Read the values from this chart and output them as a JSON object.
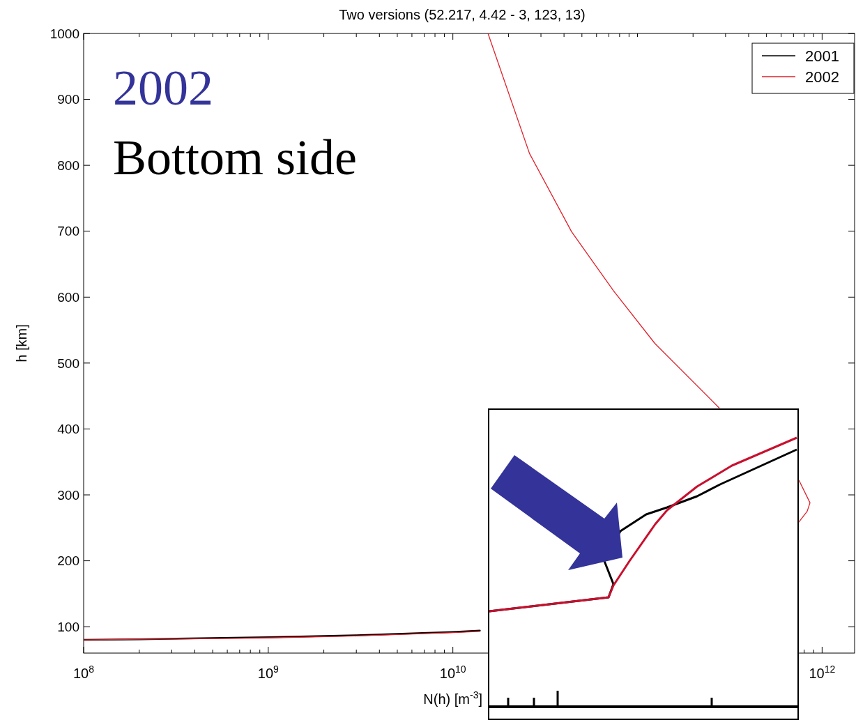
{
  "chart_data": {
    "type": "line",
    "title": "Two versions (52.217, 4.42 - 3, 123, 13)",
    "xlabel": "N(h) [m$^{-3}$]",
    "ylabel": "h [km]",
    "log": "x",
    "xlim": [
      100000000,
      1500000000000
    ],
    "ylim": [
      60,
      1000
    ],
    "xticks": [
      {
        "value": 100000000,
        "label": "10$^{8}$"
      },
      {
        "value": 200000000,
        "label": null
      },
      {
        "value": 300000000,
        "label": null
      },
      {
        "value": 400000000,
        "label": null
      },
      {
        "value": 500000000,
        "label": null
      },
      {
        "value": 600000000,
        "label": null
      },
      {
        "value": 700000000,
        "label": null
      },
      {
        "value": 800000000,
        "label": null
      },
      {
        "value": 900000000,
        "label": null
      },
      {
        "value": 1000000000,
        "label": "10$^{9}$"
      },
      {
        "value": 2000000000,
        "label": null
      },
      {
        "value": 3000000000,
        "label": null
      },
      {
        "value": 4000000000,
        "label": null
      },
      {
        "value": 5000000000,
        "label": null
      },
      {
        "value": 6000000000,
        "label": null
      },
      {
        "value": 7000000000,
        "label": null
      },
      {
        "value": 8000000000,
        "label": null
      },
      {
        "value": 9000000000,
        "label": null
      },
      {
        "value": 10000000000,
        "label": "10$^{10}$"
      },
      {
        "value": 20000000000,
        "label": null
      },
      {
        "value": 30000000000,
        "label": null
      },
      {
        "value": 40000000000,
        "label": null
      },
      {
        "value": 50000000000,
        "label": null
      },
      {
        "value": 60000000000,
        "label": null
      },
      {
        "value": 70000000000,
        "label": null
      },
      {
        "value": 80000000000,
        "label": null
      },
      {
        "value": 90000000000,
        "label": null
      },
      {
        "value": 100000000000,
        "label": null
      },
      {
        "value": 200000000000,
        "label": null
      },
      {
        "value": 300000000000,
        "label": null
      },
      {
        "value": 400000000000,
        "label": null
      },
      {
        "value": 500000000000,
        "label": null
      },
      {
        "value": 600000000000,
        "label": null
      },
      {
        "value": 700000000000,
        "label": null
      },
      {
        "value": 800000000000,
        "label": null
      },
      {
        "value": 900000000000,
        "label": null
      },
      {
        "value": 1000000000000,
        "label": "10$^{12}$"
      }
    ],
    "yticks": [
      100,
      200,
      300,
      400,
      500,
      600,
      700,
      800,
      900,
      1000
    ],
    "legend": "top right",
    "grid": false,
    "series": [
      {
        "name": "2001",
        "color": "#000000",
        "x": [
          100000000,
          200000000,
          1000000000,
          3000000000,
          10000000000,
          14000000000
        ],
        "values": [
          80,
          81,
          84,
          87,
          92,
          94
        ]
      },
      {
        "name": "2002",
        "color": "#e0202a",
        "x": [
          100000000,
          200000000,
          1000000000,
          3000000000,
          10000000000,
          14000000000,
          null,
          740000000000,
          830000000000,
          860000000000,
          750000000000,
          null,
          277000000000,
          124000000000,
          74000000000,
          44000000000,
          26000000000,
          15500000000
        ],
        "values": [
          80,
          81,
          83,
          86,
          91,
          93,
          null,
          257,
          275,
          288,
          322,
          null,
          432,
          530,
          610,
          699,
          818,
          1000
        ]
      }
    ],
    "annotations": [
      "2002",
      "Bottom side"
    ]
  }
}
